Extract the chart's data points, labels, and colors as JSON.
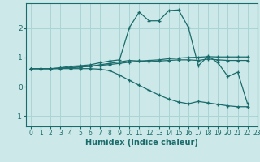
{
  "title": "",
  "xlabel": "Humidex (Indice chaleur)",
  "ylabel": "",
  "background_color": "#cce8e8",
  "grid_color": "#aad4d4",
  "line_color": "#1a6b6b",
  "xlim": [
    -0.5,
    23.0
  ],
  "ylim": [
    -1.35,
    2.85
  ],
  "xticks": [
    0,
    1,
    2,
    3,
    4,
    5,
    6,
    7,
    8,
    9,
    10,
    11,
    12,
    13,
    14,
    15,
    16,
    17,
    18,
    19,
    20,
    21,
    22,
    23
  ],
  "yticks": [
    -1,
    0,
    1,
    2
  ],
  "lines": [
    [
      0.62,
      0.62,
      0.62,
      0.65,
      0.7,
      0.72,
      0.75,
      0.82,
      0.88,
      0.92,
      2.02,
      2.55,
      2.25,
      2.25,
      2.6,
      2.62,
      2.02,
      0.72,
      1.05,
      0.82,
      0.35,
      0.5,
      -0.58
    ],
    [
      0.62,
      0.62,
      0.62,
      0.63,
      0.66,
      0.68,
      0.7,
      0.75,
      0.8,
      0.85,
      0.9,
      0.88,
      0.86,
      0.88,
      0.9,
      0.92,
      0.92,
      0.9,
      0.95,
      0.92,
      0.9,
      0.9,
      0.9
    ],
    [
      0.62,
      0.62,
      0.62,
      0.63,
      0.65,
      0.67,
      0.7,
      0.73,
      0.76,
      0.8,
      0.84,
      0.88,
      0.9,
      0.92,
      0.96,
      0.98,
      1.0,
      1.01,
      1.03,
      1.02,
      1.02,
      1.02,
      1.02
    ],
    [
      0.62,
      0.62,
      0.62,
      0.62,
      0.62,
      0.62,
      0.62,
      0.6,
      0.55,
      0.4,
      0.22,
      0.05,
      -0.12,
      -0.28,
      -0.42,
      -0.52,
      -0.58,
      -0.5,
      -0.55,
      -0.6,
      -0.65,
      -0.68,
      -0.68
    ]
  ]
}
